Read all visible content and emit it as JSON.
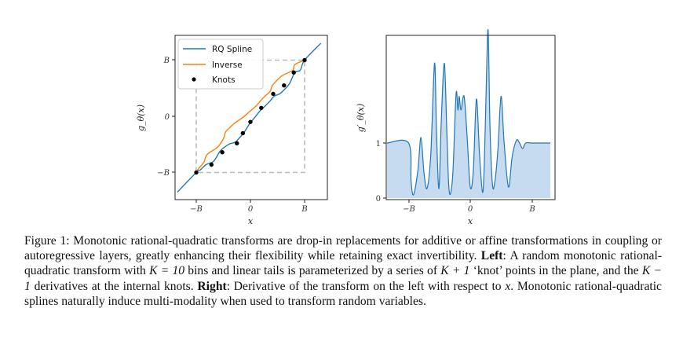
{
  "figure": {
    "panels": [
      {
        "name": "left",
        "ylabel": "g_θ(x)",
        "xlabel": "x",
        "xticks": [
          "−B",
          "0",
          "B"
        ],
        "yticks": [
          "B",
          "0",
          "−B"
        ],
        "legend": [
          {
            "label": "RQ Spline",
            "color": "#1f77b4",
            "kind": "line"
          },
          {
            "label": "Inverse",
            "color": "#ff7f0e",
            "kind": "line"
          },
          {
            "label": "Knots",
            "color": "#000000",
            "kind": "dot"
          }
        ]
      },
      {
        "name": "right",
        "ylabel": "g′_θ(x)",
        "xlabel": "x",
        "xticks": [
          "−B",
          "0",
          "B"
        ],
        "yticks": [
          "1",
          "0"
        ]
      }
    ]
  },
  "chart_data": [
    {
      "type": "line",
      "title": "",
      "xlabel": "x",
      "ylabel": "g_θ(x)",
      "xlim": [
        -1.35,
        1.45
      ],
      "ylim": [
        -1.4,
        1.45
      ],
      "bounds": [
        -1,
        1
      ],
      "series": [
        {
          "name": "RQ Spline",
          "color": "#1f77b4",
          "x": [
            -1.35,
            -1.0,
            -0.92,
            -0.82,
            -0.68,
            -0.56,
            -0.48,
            -0.38,
            -0.28,
            -0.2,
            -0.12,
            -0.02,
            0.08,
            0.18,
            0.28,
            0.36,
            0.44,
            0.54,
            0.62,
            0.72,
            0.82,
            0.92,
            1.0,
            1.3
          ],
          "y": [
            -1.35,
            -1.0,
            -0.95,
            -0.86,
            -0.8,
            -0.62,
            -0.55,
            -0.49,
            -0.46,
            -0.38,
            -0.29,
            -0.14,
            -0.02,
            0.1,
            0.19,
            0.27,
            0.36,
            0.4,
            0.47,
            0.58,
            0.78,
            0.82,
            1.0,
            1.3
          ]
        },
        {
          "name": "Inverse",
          "color": "#ff7f0e",
          "x": [
            -1.0,
            -0.95,
            -0.86,
            -0.8,
            -0.62,
            -0.55,
            -0.49,
            -0.46,
            -0.38,
            -0.29,
            -0.14,
            -0.02,
            0.1,
            0.19,
            0.27,
            0.36,
            0.4,
            0.47,
            0.58,
            0.78,
            0.82,
            1.0
          ],
          "y": [
            -1.0,
            -0.92,
            -0.82,
            -0.68,
            -0.56,
            -0.48,
            -0.38,
            -0.28,
            -0.2,
            -0.12,
            -0.02,
            0.08,
            0.18,
            0.28,
            0.36,
            0.44,
            0.54,
            0.62,
            0.72,
            0.82,
            0.92,
            1.0
          ]
        },
        {
          "name": "Knots",
          "color": "#000000",
          "x": [
            -1.0,
            -0.72,
            -0.52,
            -0.25,
            -0.14,
            0.0,
            0.2,
            0.42,
            0.62,
            0.8,
            1.0
          ],
          "y": [
            -1.0,
            -0.86,
            -0.64,
            -0.48,
            -0.3,
            -0.1,
            0.15,
            0.4,
            0.55,
            0.78,
            1.0
          ]
        }
      ],
      "legend": "top-left",
      "grid": false
    },
    {
      "type": "area",
      "title": "",
      "xlabel": "x",
      "ylabel": "g′_θ(x)",
      "xlim": [
        -1.35,
        1.3
      ],
      "ylim": [
        0,
        3.25
      ],
      "series": [
        {
          "name": "derivative",
          "color": "#1f77b4",
          "fill": "#c6dbef",
          "x": [
            -1.35,
            -1.0,
            -0.96,
            -0.92,
            -0.85,
            -0.8,
            -0.75,
            -0.7,
            -0.64,
            -0.58,
            -0.55,
            -0.52,
            -0.5,
            -0.47,
            -0.42,
            -0.38,
            -0.35,
            -0.32,
            -0.28,
            -0.23,
            -0.2,
            -0.18,
            -0.15,
            -0.1,
            -0.05,
            0.0,
            0.05,
            0.1,
            0.15,
            0.2,
            0.23,
            0.26,
            0.29,
            0.32,
            0.36,
            0.4,
            0.45,
            0.5,
            0.55,
            0.62,
            0.68,
            0.75,
            0.8,
            0.85,
            0.9,
            1.0,
            1.3
          ],
          "y": [
            1.0,
            1.0,
            0.3,
            0.06,
            0.5,
            1.1,
            0.45,
            0.18,
            0.8,
            2.45,
            1.3,
            0.3,
            0.3,
            1.4,
            2.45,
            1.2,
            0.25,
            0.08,
            0.5,
            1.9,
            1.6,
            1.85,
            1.6,
            1.85,
            1.1,
            0.2,
            0.5,
            1.8,
            0.8,
            0.1,
            0.7,
            2.05,
            3.05,
            1.3,
            0.25,
            0.3,
            0.9,
            1.85,
            1.0,
            0.2,
            0.75,
            1.05,
            1.0,
            0.9,
            1.0,
            1.0,
            1.0
          ]
        }
      ],
      "legend": "none",
      "grid": false
    }
  ],
  "caption": {
    "s1": "Figure 1: Monotonic rational-quadratic transforms are drop-in replacements for additive or affine transformations in coupling or autoregressive layers, greatly enhancing their flexibility while retaining exact invertibility.",
    "left_label": "Left",
    "s2a": ": A random monotonic rational-quadratic transform with",
    "m1": "K = 10",
    "s2b": "bins and linear tails is parameterized by a series of",
    "m2": "K + 1",
    "s2c": "‘knot’ points in the plane, and the",
    "m3": "K − 1",
    "s2d": "derivatives at the internal knots.",
    "right_label": "Right",
    "s3a": ": Derivative of the transform on the left with respect to",
    "m4": "x",
    "s3b": ". Monotonic rational-quadratic splines naturally induce multi-modality when used to transform random variables."
  }
}
